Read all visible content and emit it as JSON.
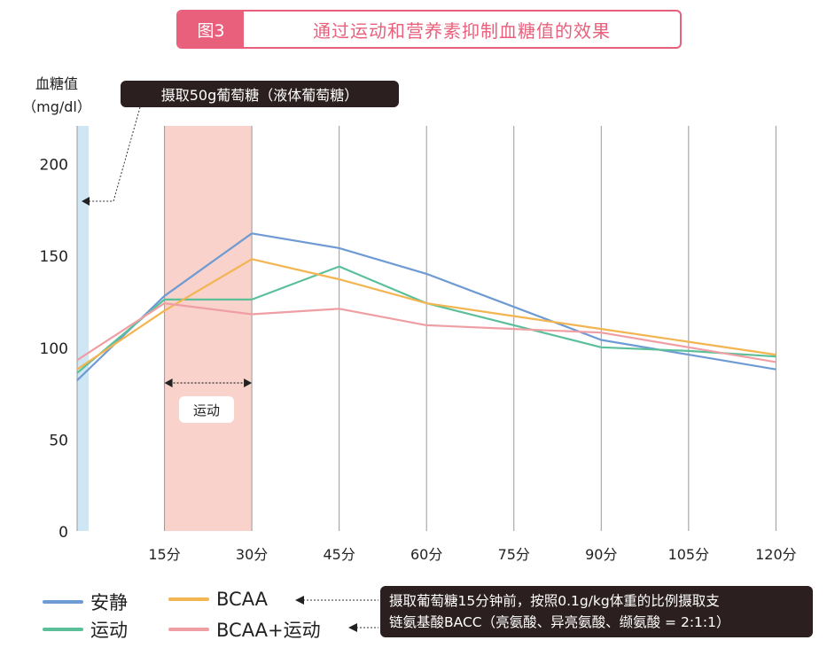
{
  "header": {
    "tag": "图3",
    "title": "通过运动和营养素抑制血糖值的效果"
  },
  "axis": {
    "ylabel_line1": "血糖值",
    "ylabel_line2": "（mg/dl）"
  },
  "annotations": {
    "glucose_intake": "摄取50g葡萄糖（液体葡萄糖）",
    "exercise": "运动",
    "note_line1": "摄取葡萄糖15分钟前，按照0.1g/kg体重的比例摄取支",
    "note_line2": "链氨基酸BACC（亮氨酸、异亮氨酸、缬氨酸 = 2:1:1）"
  },
  "colors": {
    "rest": "#6e9bd3",
    "exercise": "#5bbf9a",
    "bcaa": "#f3b552",
    "bcaa_exercise": "#ef9ea4",
    "title": "#e8607c",
    "intake_band": "#cfe7f5",
    "exercise_band": "#f9d2cb"
  },
  "chart_data": {
    "type": "line",
    "x": [
      0,
      15,
      30,
      45,
      60,
      75,
      90,
      105,
      120
    ],
    "xtick_labels": [
      "15分",
      "30分",
      "45分",
      "60分",
      "75分",
      "90分",
      "105分",
      "120分"
    ],
    "xtick_values": [
      15,
      30,
      45,
      60,
      75,
      90,
      105,
      120
    ],
    "ylim": [
      0,
      220
    ],
    "yticks": [
      0,
      50,
      100,
      150,
      200
    ],
    "series": [
      {
        "name": "安静",
        "key": "rest",
        "values": [
          82,
          128,
          162,
          154,
          140,
          122,
          104,
          96,
          88
        ]
      },
      {
        "name": "运动",
        "key": "exercise",
        "values": [
          86,
          126,
          126,
          144,
          124,
          112,
          100,
          98,
          95
        ]
      },
      {
        "name": "BCAA",
        "key": "bcaa",
        "values": [
          88,
          120,
          148,
          137,
          124,
          117,
          110,
          103,
          96
        ]
      },
      {
        "name": "BCAA+运动",
        "key": "bcaa_exercise",
        "values": [
          93,
          124,
          118,
          121,
          112,
          110,
          108,
          100,
          92
        ]
      }
    ],
    "intake_band": [
      0,
      2
    ],
    "exercise_band": [
      15,
      30
    ],
    "grid": true
  }
}
